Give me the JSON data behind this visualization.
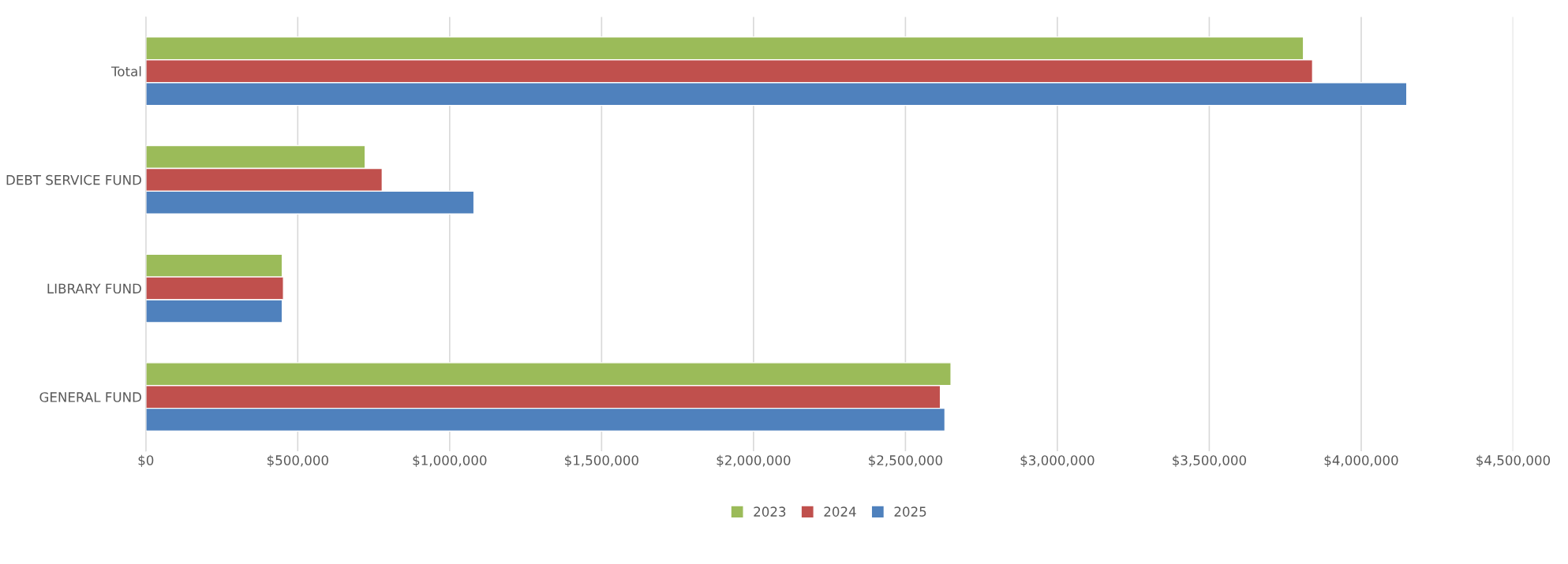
{
  "chart_data": {
    "type": "bar",
    "orientation": "horizontal",
    "categories": [
      "Total",
      "DEBT SERVICE FUND",
      "LIBRARY FUND",
      "GENERAL FUND"
    ],
    "series": [
      {
        "name": "2023",
        "color": "#9bbb59",
        "values": [
          3810000,
          722000,
          449000,
          2650000
        ]
      },
      {
        "name": "2024",
        "color": "#c0504d",
        "values": [
          3840000,
          778000,
          453000,
          2615000
        ]
      },
      {
        "name": "2025",
        "color": "#4f81bd",
        "values": [
          4150000,
          1080000,
          449000,
          2630000
        ]
      }
    ],
    "xlim": [
      0,
      4500000
    ],
    "xticks": [
      {
        "value": 0,
        "label": "$0"
      },
      {
        "value": 500000,
        "label": "$500,000"
      },
      {
        "value": 1000000,
        "label": "$1,000,000"
      },
      {
        "value": 1500000,
        "label": "$1,500,000"
      },
      {
        "value": 2000000,
        "label": "$2,000,000"
      },
      {
        "value": 2500000,
        "label": "$2,500,000"
      },
      {
        "value": 3000000,
        "label": "$3,000,000"
      },
      {
        "value": 3500000,
        "label": "$3,500,000"
      },
      {
        "value": 4000000,
        "label": "$4,000,000"
      },
      {
        "value": 4500000,
        "label": "$4,500,000"
      }
    ],
    "grid": "x",
    "legend": "bottom"
  }
}
